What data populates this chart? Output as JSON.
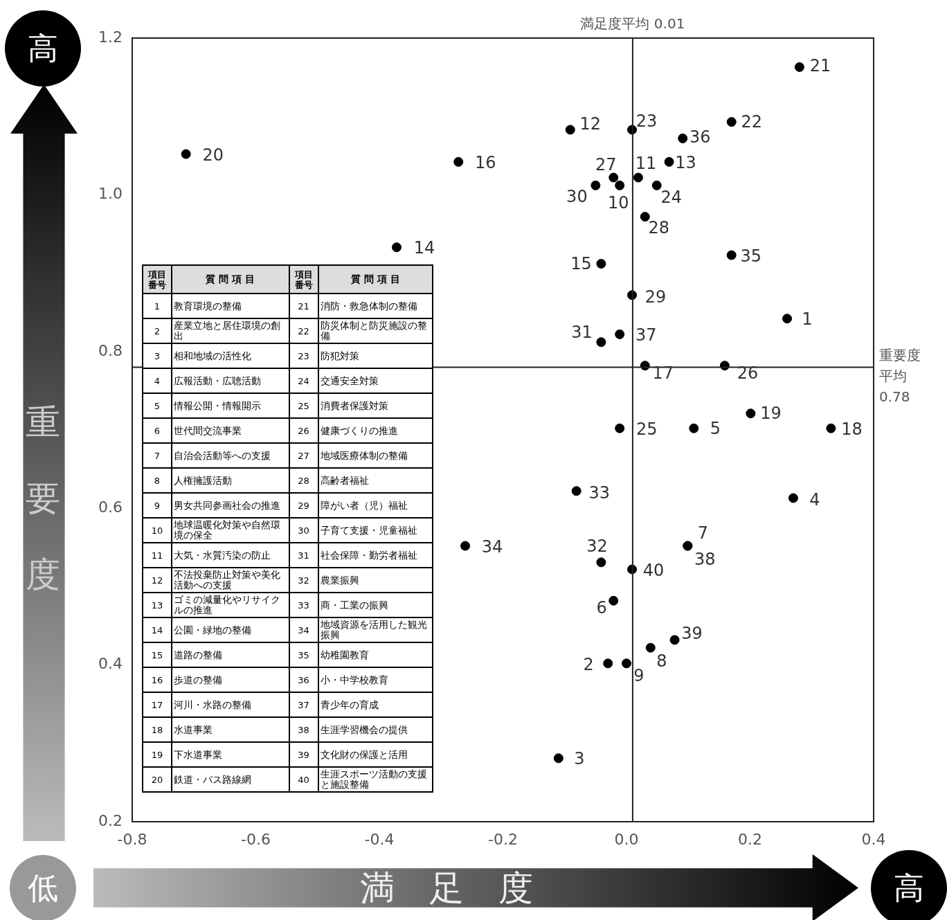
{
  "chart_data": {
    "type": "scatter",
    "xlabel": "満足度",
    "ylabel": "重要度",
    "marker": "circle",
    "xlim": [
      -0.8,
      0.4
    ],
    "ylim": [
      0.2,
      1.2
    ],
    "xticks": [
      -0.8,
      -0.6,
      -0.4,
      -0.2,
      {
        "value": 0,
        "label": "0.0"
      },
      0.2,
      0.4
    ],
    "yticks": [
      0.2,
      0.4,
      0.6,
      0.8,
      {
        "value": 1,
        "label": "1.0"
      },
      1.2
    ],
    "x": [
      0.26,
      -0.03,
      -0.11,
      0.27,
      0.109,
      -0.021,
      0.099,
      0.039,
      0.0,
      -0.011,
      0.019,
      -0.091,
      0.069,
      -0.372,
      -0.041,
      -0.272,
      0.03,
      0.331,
      0.201,
      -0.713,
      0.28,
      0.17,
      0.009,
      0.049,
      -0.011,
      0.159,
      -0.021,
      0.03,
      0.009,
      -0.05,
      -0.041,
      -0.041,
      -0.081,
      -0.261,
      0.17,
      0.091,
      -0.011,
      0.099,
      0.078,
      0.009
    ],
    "series": [
      {
        "color": "#000000",
        "values": [
          0.842,
          0.402,
          0.281,
          0.613,
          0.702,
          0.482,
          0.552,
          0.422,
          0.402,
          1.012,
          1.022,
          1.083,
          1.042,
          0.933,
          0.912,
          1.042,
          0.782,
          0.702,
          0.721,
          1.052,
          1.163,
          1.093,
          1.083,
          1.012,
          0.702,
          0.782,
          1.022,
          0.972,
          0.872,
          1.012,
          0.812,
          0.531,
          0.622,
          0.552,
          0.923,
          1.072,
          0.822,
          0.552,
          0.432,
          0.522
        ]
      }
    ],
    "ref_lines": [
      {
        "axis": "x",
        "value": 0.01,
        "label": "満足度平均 0.01"
      },
      {
        "axis": "y",
        "value": 0.78,
        "label": "重要度平均 0.78"
      }
    ],
    "annotations": [
      "高",
      "低",
      "高",
      {
        "text": "1",
        "x": 0.26,
        "y": 0.842
      },
      {
        "text": "2",
        "x": -0.03,
        "y": 0.402
      },
      {
        "text": "3",
        "x": -0.11,
        "y": 0.281
      },
      {
        "text": "4",
        "x": 0.27,
        "y": 0.613
      },
      {
        "text": "5",
        "x": 0.109,
        "y": 0.702
      },
      {
        "text": "6",
        "x": -0.021,
        "y": 0.482
      },
      {
        "text": "7",
        "x": 0.099,
        "y": 0.552
      },
      {
        "text": "8",
        "x": 0.039,
        "y": 0.422
      },
      {
        "text": "9",
        "x": 0.0,
        "y": 0.402
      },
      {
        "text": "10",
        "x": -0.011,
        "y": 1.012
      },
      {
        "text": "11",
        "x": 0.019,
        "y": 1.022
      },
      {
        "text": "12",
        "x": -0.091,
        "y": 1.083
      },
      {
        "text": "13",
        "x": 0.069,
        "y": 1.042
      },
      {
        "text": "14",
        "x": -0.372,
        "y": 0.933
      },
      {
        "text": "15",
        "x": -0.041,
        "y": 0.912
      },
      {
        "text": "16",
        "x": -0.272,
        "y": 1.042
      },
      {
        "text": "17",
        "x": 0.03,
        "y": 0.782
      },
      {
        "text": "18",
        "x": 0.331,
        "y": 0.702
      },
      {
        "text": "19",
        "x": 0.201,
        "y": 0.721
      },
      {
        "text": "20",
        "x": -0.713,
        "y": 1.052
      },
      {
        "text": "21",
        "x": 0.28,
        "y": 1.163
      },
      {
        "text": "22",
        "x": 0.17,
        "y": 1.093
      },
      {
        "text": "23",
        "x": 0.009,
        "y": 1.083
      },
      {
        "text": "24",
        "x": 0.049,
        "y": 1.012
      },
      {
        "text": "25",
        "x": -0.011,
        "y": 0.702
      },
      {
        "text": "26",
        "x": 0.159,
        "y": 0.782
      },
      {
        "text": "27",
        "x": -0.021,
        "y": 1.022
      },
      {
        "text": "28",
        "x": 0.03,
        "y": 0.972
      },
      {
        "text": "29",
        "x": 0.009,
        "y": 0.872
      },
      {
        "text": "30",
        "x": -0.05,
        "y": 1.012
      },
      {
        "text": "31",
        "x": -0.041,
        "y": 0.812
      },
      {
        "text": "32",
        "x": -0.041,
        "y": 0.531
      },
      {
        "text": "33",
        "x": -0.081,
        "y": 0.622
      },
      {
        "text": "34",
        "x": -0.261,
        "y": 0.552
      },
      {
        "text": "35",
        "x": 0.17,
        "y": 0.923
      },
      {
        "text": "36",
        "x": 0.091,
        "y": 1.072
      },
      {
        "text": "37",
        "x": -0.011,
        "y": 0.822
      },
      {
        "text": "38",
        "x": 0.099,
        "y": 0.552
      },
      {
        "text": "39",
        "x": 0.078,
        "y": 0.432
      },
      {
        "text": "40",
        "x": 0.009,
        "y": 0.522
      },
      "項目番号",
      "質 問 項 目",
      "項目番号",
      "質 問 項 目",
      "1",
      "教育環境の整備",
      "21",
      "消防・救急体制の整備",
      "2",
      "産業立地と居住環境の創出",
      "22",
      "防災体制と防災施設の整備",
      "3",
      "相和地域の活性化",
      "23",
      "防犯対策",
      "4",
      "広報活動・広聴活動",
      "24",
      "交通安全対策",
      "5",
      "情報公開・情報開示",
      "25",
      "消費者保護対策",
      "6",
      "世代間交流事業",
      "26",
      "健康づくりの推進",
      "7",
      "自治会活動等への支援",
      "27",
      "地域医療体制の整備",
      "8",
      "人権擁護活動",
      "28",
      "高齢者福祉",
      "9",
      "男女共同参画社会の推進",
      "29",
      "障がい者（児）福祉",
      "10",
      "地球温暖化対策や自然環境の保全",
      "30",
      "子育て支援・児童福祉",
      "11",
      "大気・水質汚染の防止",
      "31",
      "社会保障・勤労者福祉",
      "12",
      "不法投棄防止対策や美化活動への支援",
      "32",
      "農業振興",
      "13",
      "ゴミの減量化やリサイクルの推進",
      "33",
      "商・工業の振興",
      "14",
      "公園・緑地の整備",
      "34",
      "地域資源を活用した観光振興",
      "15",
      "道路の整備",
      "35",
      "幼稚園教育",
      "16",
      "歩道の整備",
      "36",
      "小・中学校教育",
      "17",
      "河川・水路の整備",
      "37",
      "青少年の育成",
      "18",
      "水道事業",
      "38",
      "生涯学習機会の提供",
      "19",
      "下水道事業",
      "39",
      "文化財の保護と活用",
      "20",
      "鉄道・バス路線網",
      "40",
      "生涯スポーツ活動の支援と施設整備"
    ]
  }
}
